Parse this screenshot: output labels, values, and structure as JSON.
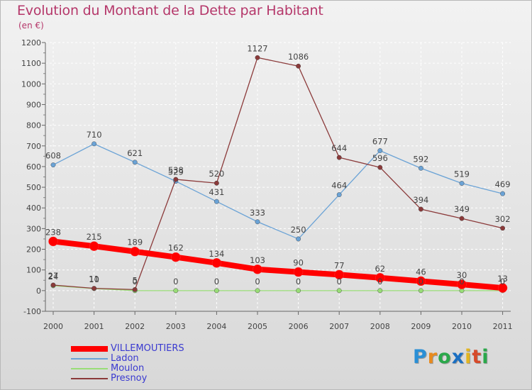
{
  "header": {
    "title": "Evolution du Montant de la Dette par Habitant",
    "subtitle": "(en €)"
  },
  "brand": {
    "letters": [
      "P",
      "r",
      "o",
      "x",
      "i",
      "t",
      "i"
    ],
    "colors": [
      "#2a8fd6",
      "#e98b1e",
      "#2aa84a",
      "#1a6fc2",
      "#e3b520",
      "#d64a2a",
      "#2aa84a"
    ]
  },
  "chart_data": {
    "type": "line",
    "title": "Evolution du Montant de la Dette par Habitant",
    "subtitle": "(en €)",
    "xlabel": "",
    "ylabel": "",
    "x": [
      "2000",
      "2001",
      "2002",
      "2003",
      "2004",
      "2005",
      "2006",
      "2007",
      "2008",
      "2009",
      "2010",
      "2011"
    ],
    "ylim": [
      -100,
      1200
    ],
    "yticks": [
      "-100",
      "0",
      "100",
      "200",
      "300",
      "400",
      "500",
      "600",
      "700",
      "800",
      "900",
      "1000",
      "1100",
      "1200"
    ],
    "legend_position": "bottom-left",
    "series": [
      {
        "name": "VILLEMOUTIERS",
        "color": "#ff0000",
        "values": [
          238,
          215,
          189,
          162,
          134,
          103,
          90,
          77,
          62,
          46,
          30,
          13
        ],
        "labels": [
          "238",
          "215",
          "189",
          "162",
          "134",
          "103",
          "90",
          "77",
          "62",
          "46",
          "30",
          "13"
        ]
      },
      {
        "name": "Ladon",
        "color": "#6ba3d6",
        "values": [
          608,
          710,
          621,
          529,
          431,
          333,
          250,
          464,
          677,
          592,
          519,
          469
        ],
        "labels": [
          "608",
          "710",
          "621",
          "529",
          "431",
          "333",
          "250",
          "464",
          "677",
          "592",
          "519",
          "469"
        ]
      },
      {
        "name": "Moulon",
        "color": "#99dd77",
        "values": [
          24,
          10,
          0,
          0,
          0,
          0,
          0,
          0,
          0,
          0,
          0,
          0
        ],
        "labels": [
          "24",
          "10",
          "0",
          "0",
          "0",
          "0",
          "0",
          "0",
          "0",
          "0",
          "0",
          "0"
        ]
      },
      {
        "name": "Presnoy",
        "color": "#8b3a3a",
        "values": [
          27,
          11,
          5,
          538,
          520,
          1127,
          1086,
          644,
          596,
          394,
          349,
          302
        ],
        "labels": [
          "27",
          "11",
          "5",
          "538",
          "520",
          "1127",
          "1086",
          "644",
          "596",
          "394",
          "349",
          "302"
        ]
      }
    ]
  }
}
